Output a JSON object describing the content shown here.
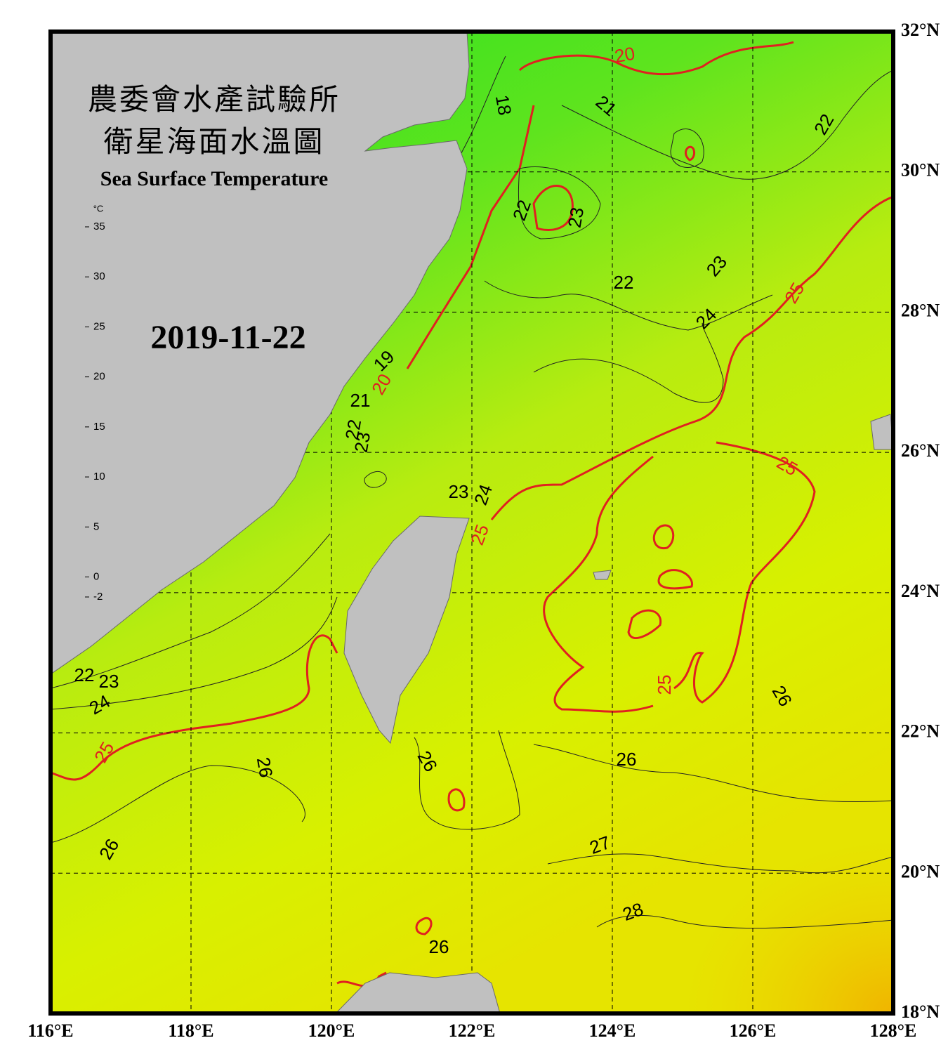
{
  "header": {
    "title_zh_1": "農委會水產試驗所",
    "title_zh_2": "衛星海面水溫圖",
    "title_en": "Sea Surface Temperature",
    "date": "2019-11-22"
  },
  "colorbar": {
    "unit": "°C",
    "range": [
      -2,
      35
    ],
    "ticks": [
      35,
      30,
      25,
      20,
      15,
      10,
      5,
      0,
      -2
    ]
  },
  "map": {
    "lonlim": [
      116,
      128
    ],
    "latlim": [
      18,
      32
    ],
    "lon_ticks": [
      {
        "value": 116,
        "label": "116°E"
      },
      {
        "value": 118,
        "label": "118°E"
      },
      {
        "value": 120,
        "label": "120°E"
      },
      {
        "value": 122,
        "label": "122°E"
      },
      {
        "value": 124,
        "label": "124°E"
      },
      {
        "value": 126,
        "label": "126°E"
      },
      {
        "value": 128,
        "label": "128°E"
      }
    ],
    "lat_ticks": [
      {
        "value": 18,
        "label": "18°N"
      },
      {
        "value": 20,
        "label": "20°N"
      },
      {
        "value": 22,
        "label": "22°N"
      },
      {
        "value": 24,
        "label": "24°N"
      },
      {
        "value": 26,
        "label": "26°N"
      },
      {
        "value": 28,
        "label": "28°N"
      },
      {
        "value": 30,
        "label": "30°N"
      },
      {
        "value": 32,
        "label": "32°N"
      }
    ],
    "contour_labels": [
      "20",
      "18",
      "21",
      "22",
      "22",
      "23",
      "23",
      "22",
      "25",
      "24",
      "19",
      "20",
      "21",
      "22",
      "23",
      "23",
      "24",
      "25",
      "25",
      "25",
      "22",
      "23",
      "24",
      "26",
      "25",
      "26",
      "26",
      "26",
      "26",
      "27",
      "28",
      "26"
    ]
  }
}
